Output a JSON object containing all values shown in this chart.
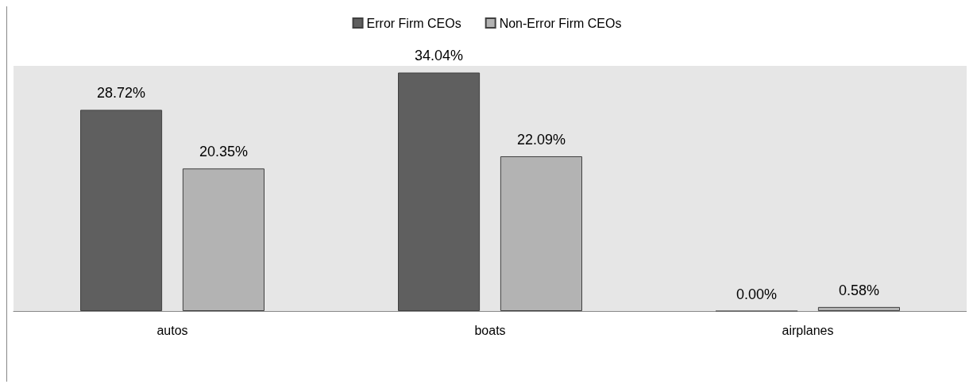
{
  "chart_data": {
    "type": "bar",
    "categories": [
      "autos",
      "boats",
      "airplanes"
    ],
    "series": [
      {
        "name": "Error Firm CEOs",
        "color": "#5f5f5f",
        "values": [
          28.72,
          34.04,
          0.0
        ],
        "value_labels": [
          "28.72%",
          "34.04%",
          "0.00%"
        ]
      },
      {
        "name": "Non-Error Firm CEOs",
        "color": "#b3b3b3",
        "values": [
          20.35,
          22.09,
          0.58
        ],
        "value_labels": [
          "20.35%",
          "22.09%",
          "0.58%"
        ]
      }
    ],
    "legend": "top",
    "tick_labels": "x"
  }
}
